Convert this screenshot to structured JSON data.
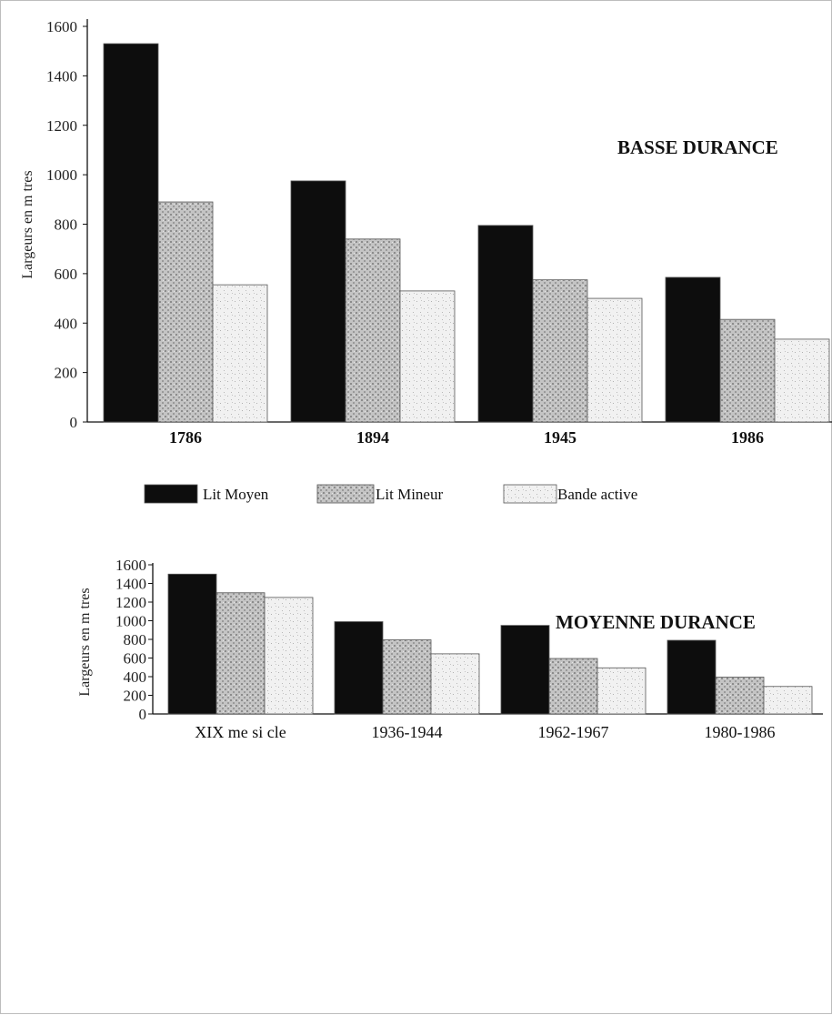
{
  "colors": {
    "lit_moyen": "#0d0d0d",
    "lit_mineur": "#bcbcbc",
    "bande_active": "#ececec"
  },
  "chart_data": [
    {
      "type": "bar",
      "title": "BASSE DURANCE",
      "ylabel": "Largeurs en m tres",
      "xlabel": "",
      "ylim": [
        0,
        1600
      ],
      "yticks": [
        0,
        200,
        400,
        600,
        800,
        1000,
        1200,
        1400,
        1600
      ],
      "categories": [
        "1786",
        "1894",
        "1945",
        "1986"
      ],
      "series": [
        {
          "name": "Lit Moyen",
          "values": [
            1530,
            975,
            795,
            585
          ]
        },
        {
          "name": "Lit Mineur",
          "values": [
            890,
            740,
            575,
            415
          ]
        },
        {
          "name": "Bande  active",
          "values": [
            555,
            530,
            500,
            335
          ]
        }
      ],
      "legend": {
        "position": "bottom",
        "items": [
          "Lit Moyen",
          "Lit Mineur",
          "Bande  active"
        ]
      },
      "grid": false
    },
    {
      "type": "bar",
      "title": "MOYENNE DURANCE",
      "ylabel": "Largeurs en m tres",
      "xlabel": "",
      "ylim": [
        0,
        1600
      ],
      "yticks": [
        0,
        200,
        400,
        600,
        800,
        1000,
        1200,
        1400,
        1600
      ],
      "categories": [
        "XIX me si cle",
        "1936-1944",
        "1962-1967",
        "1980-1986"
      ],
      "series": [
        {
          "values": [
            1500,
            990,
            950,
            790
          ]
        },
        {
          "values": [
            1300,
            795,
            595,
            395
          ]
        },
        {
          "values": [
            1250,
            645,
            495,
            295
          ]
        }
      ],
      "grid": false
    }
  ]
}
